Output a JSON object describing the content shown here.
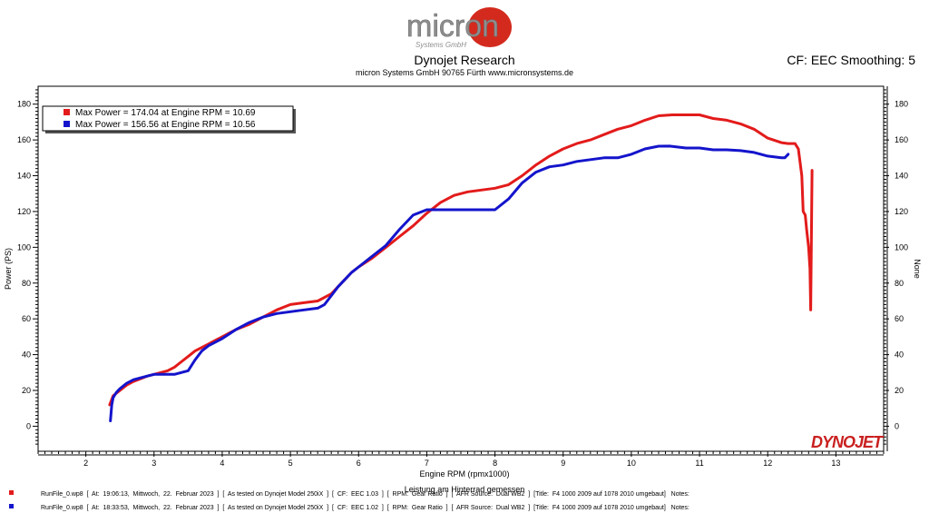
{
  "header": {
    "logo_text": "micron",
    "logo_sub": "Systems GmbH",
    "title": "Dynojet Research",
    "subtitle": "micron Systems GmbH  90765 Fürth www.micronsystems.de",
    "cf": "CF: EEC Smoothing: 5"
  },
  "colors": {
    "red": "#e31b1b",
    "blue": "#1414cc",
    "axis": "#000000",
    "plot_bg": "#ffffff"
  },
  "chart_data": {
    "type": "line",
    "xlabel": "Engine RPM (rpmx1000)",
    "xlabel2": "Leistung am Hinterrad gemessen",
    "ylabel": "Power (PS)",
    "y2label": "None",
    "xlim": [
      1.3,
      13.7
    ],
    "ylim": [
      -14,
      190
    ],
    "xticks": [
      2,
      3,
      4,
      5,
      6,
      7,
      8,
      9,
      10,
      11,
      12,
      13
    ],
    "yticks": [
      0,
      20,
      40,
      60,
      80,
      100,
      120,
      140,
      160,
      180
    ],
    "legend_position": "top-left",
    "watermark": "DYNOJET",
    "series": [
      {
        "name": "Max Power = 174.04 at Engine RPM = 10.69",
        "color": "#e31b1b",
        "x": [
          2.35,
          2.4,
          2.5,
          2.6,
          2.7,
          2.8,
          2.9,
          3.0,
          3.1,
          3.2,
          3.3,
          3.4,
          3.5,
          3.6,
          3.7,
          3.8,
          3.9,
          4.0,
          4.2,
          4.4,
          4.6,
          4.8,
          5.0,
          5.2,
          5.4,
          5.6,
          5.7,
          5.8,
          5.9,
          6.0,
          6.2,
          6.4,
          6.6,
          6.8,
          7.0,
          7.2,
          7.4,
          7.6,
          7.8,
          8.0,
          8.2,
          8.4,
          8.6,
          8.8,
          9.0,
          9.2,
          9.4,
          9.6,
          9.8,
          10.0,
          10.2,
          10.4,
          10.6,
          10.8,
          11.0,
          11.2,
          11.4,
          11.6,
          11.8,
          12.0,
          12.2,
          12.3,
          12.4,
          12.45,
          12.5,
          12.52,
          12.55,
          12.57,
          12.6,
          12.62,
          12.63,
          12.65
        ],
        "y": [
          12,
          17,
          20,
          23,
          25,
          26.5,
          28,
          29,
          30,
          31,
          33,
          36,
          39,
          42,
          44,
          46,
          48,
          50,
          54,
          57,
          61,
          65,
          68,
          69,
          70,
          74,
          78,
          82,
          86,
          89,
          94,
          100,
          106,
          112,
          119,
          125,
          129,
          131,
          132,
          133,
          135,
          140,
          146,
          151,
          155,
          158,
          160,
          163,
          166,
          168,
          171,
          173.5,
          174,
          174,
          174,
          172,
          171,
          169,
          166,
          161,
          158.5,
          158,
          158,
          155,
          140,
          120,
          118,
          110,
          100,
          88,
          65,
          143
        ]
      },
      {
        "name": "Max Power = 156.56 at Engine RPM = 10.56",
        "color": "#1414cc",
        "x": [
          2.36,
          2.38,
          2.4,
          2.45,
          2.5,
          2.6,
          2.7,
          2.8,
          2.9,
          3.0,
          3.1,
          3.2,
          3.3,
          3.4,
          3.5,
          3.6,
          3.7,
          3.8,
          3.9,
          4.0,
          4.2,
          4.4,
          4.6,
          4.8,
          5.0,
          5.2,
          5.4,
          5.5,
          5.6,
          5.7,
          5.8,
          5.9,
          6.0,
          6.2,
          6.4,
          6.6,
          6.8,
          7.0,
          7.2,
          7.4,
          7.6,
          7.8,
          8.0,
          8.2,
          8.4,
          8.6,
          8.8,
          9.0,
          9.2,
          9.4,
          9.6,
          9.8,
          10.0,
          10.2,
          10.4,
          10.56,
          10.8,
          11.0,
          11.2,
          11.4,
          11.6,
          11.8,
          12.0,
          12.2,
          12.25,
          12.3
        ],
        "y": [
          3,
          12,
          16,
          19,
          21,
          24,
          26,
          27,
          28,
          29,
          29,
          29,
          29,
          30,
          31,
          37,
          42,
          45,
          47,
          49,
          54,
          58,
          61,
          63,
          64,
          65,
          66,
          68,
          73,
          78,
          82,
          86,
          89,
          95,
          101,
          110,
          118,
          121,
          121,
          121,
          121,
          121,
          121,
          127,
          136,
          142,
          145,
          146,
          148,
          149,
          150,
          150,
          152,
          155,
          156.5,
          156.56,
          155.5,
          155.5,
          154.5,
          154.5,
          154,
          153,
          151,
          150,
          150,
          152
        ]
      }
    ]
  },
  "footer": [
    {
      "color": "#e31b1b",
      "text": "RunFile_0.wp8  [  At:  19:06:13,  Mittwoch,  22.  Februar 2023  ]  [  As tested on Dynojet Model 250iX  ]  [  CF:  EEC 1.03  ]  [  RPM:  Gear Ratio  ]  [  AFR Source:  Dual WB2  ]  [Title:  F4 1000 2009 auf 1078 2010 umgebaut]   Notes:"
    },
    {
      "color": "#1414cc",
      "text": "RunFile_0.wp8  [  At:  18:33:53,  Mittwoch,  22.  Februar 2023  ]  [  As tested on Dynojet Model 250iX  ]  [  CF:  EEC 1.02  ]  [  RPM:  Gear Ratio  ]  [  AFR Source:  Dual WB2  ]  [Title:  F4 1000 2009 auf 1078 2010 umgebaut]   Notes:"
    }
  ]
}
